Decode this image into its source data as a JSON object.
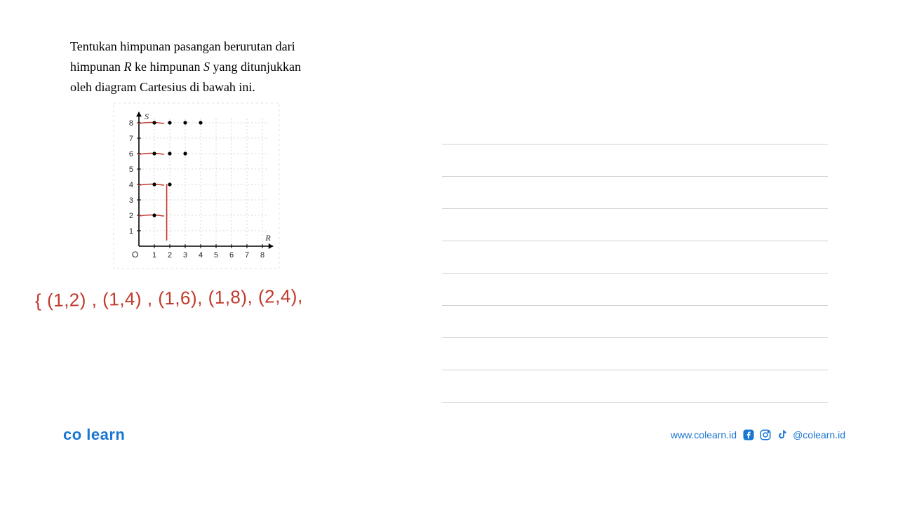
{
  "problem": {
    "line1_a": "Tentukan himpunan pasangan berurutan dari",
    "line2_a": "himpunan ",
    "line2_r": "R",
    "line2_b": " ke himpunan ",
    "line2_s": "S",
    "line2_c": " yang ditunjukkan",
    "line3": "oleh diagram Cartesius di bawah ini."
  },
  "chart": {
    "type": "scatter",
    "x_label": "R",
    "y_label": "S",
    "origin_label": "O",
    "xlim": [
      0,
      8.5
    ],
    "ylim": [
      0,
      8.5
    ],
    "xticks": [
      1,
      2,
      3,
      4,
      5,
      6,
      7,
      8
    ],
    "yticks": [
      1,
      2,
      3,
      4,
      5,
      6,
      7,
      8
    ],
    "tick_fontsize": 11,
    "axis_color": "#000000",
    "grid_color": "#d8d8d8",
    "point_color": "#000000",
    "point_radius": 2.6,
    "annotation_color": "#c0392b",
    "annotation_stroke": 1.6,
    "background": "#ffffff",
    "grid_on": true,
    "points": [
      {
        "x": 1,
        "y": 2
      },
      {
        "x": 1,
        "y": 4
      },
      {
        "x": 2,
        "y": 4
      },
      {
        "x": 1,
        "y": 6
      },
      {
        "x": 2,
        "y": 6
      },
      {
        "x": 3,
        "y": 6
      },
      {
        "x": 1,
        "y": 8
      },
      {
        "x": 2,
        "y": 8
      },
      {
        "x": 3,
        "y": 8
      },
      {
        "x": 4,
        "y": 8
      }
    ],
    "red_marks": {
      "hlines_y": [
        2,
        4,
        6,
        8
      ],
      "vline_x": 1.8,
      "vline_y_from": 0.4,
      "vline_y_to": 4
    }
  },
  "handwriting": {
    "text": "{ (1,2) , (1,4) , (1,6), (1,8), (2,4),"
  },
  "ruled": {
    "count": 9,
    "line_color": "#d0d0d0"
  },
  "footer": {
    "logo": "co learn",
    "url": "www.colearn.id",
    "handle": "@colearn.id",
    "brand_color": "#1976d2"
  }
}
